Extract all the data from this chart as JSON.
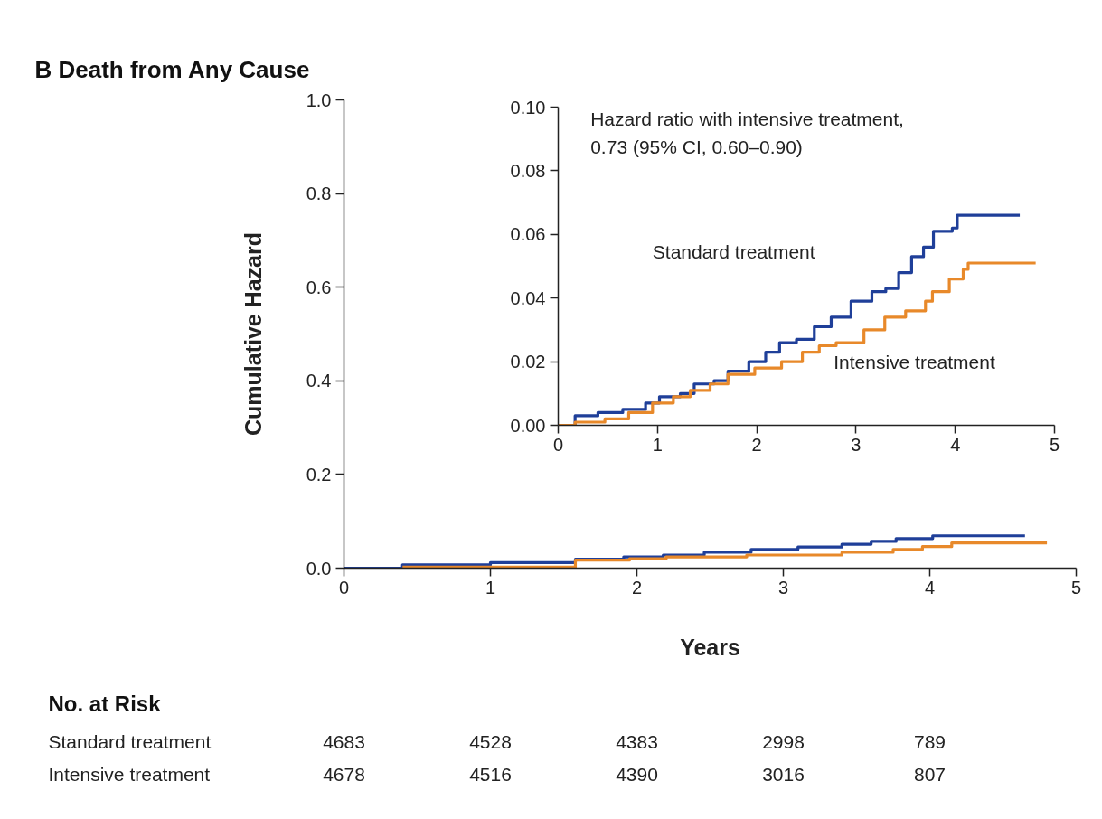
{
  "chart_data": [
    {
      "type": "step",
      "title": "B Death from Any Cause",
      "xlabel": "Years",
      "ylabel": "Cumulative Hazard",
      "xlim": [
        0,
        5
      ],
      "ylim": [
        0,
        1
      ],
      "xticks": [
        0,
        1,
        2,
        3,
        4,
        5
      ],
      "yticks": [
        {
          "value": 0,
          "label": "0.0"
        },
        {
          "value": 0.2,
          "label": "0.2"
        },
        {
          "value": 0.4,
          "label": "0.4"
        },
        {
          "value": 0.6,
          "label": "0.6"
        },
        {
          "value": 0.8,
          "label": "0.8"
        },
        {
          "value": 1,
          "label": "1.0"
        }
      ],
      "series": [
        {
          "color": "#1f3f99",
          "x": [
            0,
            0.4,
            1.0,
            1.58,
            1.91,
            2.18,
            2.46,
            2.78,
            3.1,
            3.4,
            3.6,
            3.77,
            4.02,
            4.65
          ],
          "values": [
            0,
            0.007,
            0.012,
            0.019,
            0.024,
            0.028,
            0.034,
            0.04,
            0.045,
            0.051,
            0.057,
            0.063,
            0.069,
            0.069
          ]
        },
        {
          "color": "#e8892a",
          "x": [
            0.4,
            1.58,
            1.95,
            2.2,
            2.75,
            3.4,
            3.75,
            3.95,
            4.15,
            4.8
          ],
          "values": [
            0.002,
            0.017,
            0.02,
            0.024,
            0.028,
            0.034,
            0.04,
            0.046,
            0.054,
            0.054
          ]
        }
      ]
    },
    {
      "type": "step",
      "xlim": [
        0,
        5
      ],
      "ylim": [
        0,
        0.1
      ],
      "xticks": [
        0,
        1,
        2,
        3,
        4,
        5
      ],
      "yticks": [
        {
          "value": 0,
          "label": "0.00"
        },
        {
          "value": 0.02,
          "label": "0.02"
        },
        {
          "value": 0.04,
          "label": "0.04"
        },
        {
          "value": 0.06,
          "label": "0.06"
        },
        {
          "value": 0.08,
          "label": "0.08"
        },
        {
          "value": 0.1,
          "label": "0.10"
        }
      ],
      "annotations": [
        "Hazard ratio with intensive treatment,\n0.73 (95% CI, 0.60–0.90)"
      ],
      "series": [
        {
          "name": "Standard treatment",
          "color": "#1f3f99",
          "x": [
            0,
            0.17,
            0.4,
            0.65,
            0.88,
            1.02,
            1.23,
            1.37,
            1.57,
            1.71,
            1.92,
            2.09,
            2.23,
            2.4,
            2.58,
            2.75,
            2.95,
            3.16,
            3.3,
            3.43,
            3.56,
            3.68,
            3.78,
            3.97,
            4.02,
            4.65
          ],
          "values": [
            0,
            0.003,
            0.004,
            0.005,
            0.007,
            0.009,
            0.01,
            0.013,
            0.014,
            0.017,
            0.02,
            0.023,
            0.026,
            0.027,
            0.031,
            0.034,
            0.039,
            0.042,
            0.043,
            0.048,
            0.053,
            0.056,
            0.061,
            0.062,
            0.066,
            0.066
          ]
        },
        {
          "name": "Intensive treatment",
          "color": "#e8892a",
          "x": [
            0,
            0.17,
            0.47,
            0.71,
            0.95,
            1.16,
            1.33,
            1.53,
            1.71,
            1.98,
            2.25,
            2.46,
            2.63,
            2.8,
            3.08,
            3.29,
            3.5,
            3.7,
            3.77,
            3.94,
            4.08,
            4.13,
            4.81
          ],
          "values": [
            0,
            0.001,
            0.002,
            0.004,
            0.007,
            0.009,
            0.011,
            0.013,
            0.016,
            0.018,
            0.02,
            0.023,
            0.025,
            0.026,
            0.03,
            0.034,
            0.036,
            0.039,
            0.042,
            0.046,
            0.049,
            0.051,
            0.051
          ]
        }
      ]
    },
    {
      "type": "other",
      "title": "No. at Risk",
      "annotations": [
        "Standard treatment",
        "4683",
        "4528",
        "4383",
        "2998",
        "789",
        "Intensive treatment",
        "4678",
        "4516",
        "4390",
        "3016",
        "807"
      ]
    }
  ]
}
